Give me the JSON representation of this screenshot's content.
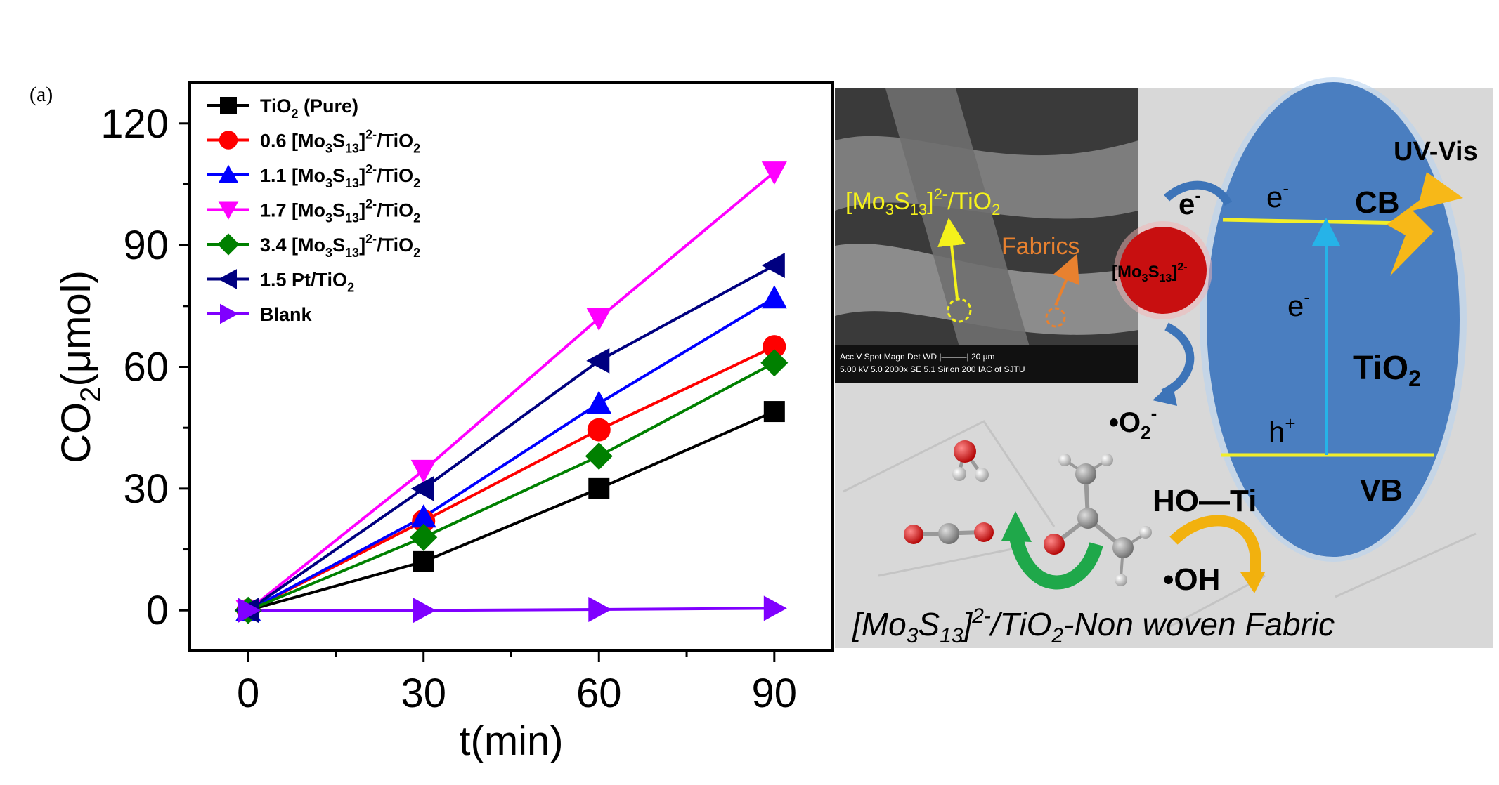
{
  "panel_label": "(a)",
  "colors": {
    "ellipse": "#4a7ec0",
    "band_line": "#f2ee2a",
    "vertical_arrow": "#26b3e8",
    "cluster": "#c80f10",
    "lightning": "#f7b818",
    "cycle_arrow_green": "#1fa84a",
    "oh_arrow": "#f2b10e",
    "photo_bg": "#d9d9d9",
    "sem_bg": "#3c3c3c",
    "annotation_yellow": "#f5f21b",
    "annotation_orange": "#e8812f"
  },
  "chart_data": {
    "type": "line",
    "x": [
      0,
      30,
      60,
      90
    ],
    "xlabel": "t(min)",
    "ylabel": "CO2(μmol)",
    "xlim": [
      -10,
      100
    ],
    "ylim": [
      -10,
      130
    ],
    "xticks": [
      0,
      30,
      60,
      90
    ],
    "yticks": [
      0,
      30,
      60,
      90,
      120
    ],
    "grid": false,
    "legend_placement": "top-left",
    "series": [
      {
        "name": "TiO2 (Pure)",
        "values": [
          0,
          12,
          30,
          49
        ],
        "color": "#000000",
        "marker": "square"
      },
      {
        "name": "0.6 [Mo3S13]2-/TiO2",
        "values": [
          0,
          22,
          44.5,
          65
        ],
        "color": "#ff0000",
        "marker": "circle"
      },
      {
        "name": "1.1 [Mo3S13]2-/TiO2",
        "values": [
          0,
          23,
          51,
          77
        ],
        "color": "#0000ff",
        "marker": "triangle-up"
      },
      {
        "name": "1.7 [Mo3S13]2-/TiO2",
        "values": [
          0,
          34.5,
          72,
          108
        ],
        "color": "#ff00ff",
        "marker": "triangle-down"
      },
      {
        "name": "3.4 [Mo3S13]2-/TiO2",
        "values": [
          0,
          18,
          38,
          61
        ],
        "color": "#008000",
        "marker": "diamond"
      },
      {
        "name": "1.5 Pt/TiO2",
        "values": [
          0,
          30,
          61.5,
          85
        ],
        "color": "#000080",
        "marker": "triangle-left"
      },
      {
        "name": "Blank",
        "values": [
          0,
          0,
          0.2,
          0.5
        ],
        "color": "#8000ff",
        "marker": "triangle-right"
      }
    ]
  },
  "diagram": {
    "uv_vis": "UV-Vis",
    "cb": "CB",
    "vb": "VB",
    "e_cb": "e",
    "e_mid": "e",
    "e_left": "e",
    "e_sup": "-",
    "h_plus": "h",
    "h_sup": "+",
    "tio2_main": "TiO",
    "tio2_sub": "2",
    "cluster_main": "[Mo",
    "cluster_sub1": "3",
    "cluster_mid": "S",
    "cluster_sub2": "13",
    "cluster_end": "]",
    "cluster_sup": "2-",
    "superoxide_main": "•O",
    "superoxide_sub": "2",
    "superoxide_sup": "-",
    "hoti": "HO—Ti",
    "oh": "•OH",
    "sem_label_main": "[Mo",
    "sem_label_sub1": "3",
    "sem_label_mid": "S",
    "sem_label_sub2": "13",
    "sem_label_end": "]",
    "sem_label_sup": "2-",
    "sem_label_tail": "/TiO",
    "sem_label_tail_sub": "2",
    "fabrics": "Fabrics",
    "sem_meta_row1": "Acc.V  Spot Magn   Det  WD  |———|  20 μm",
    "sem_meta_row2": "5.00 kV 5.0   2000x   SE   5.1   Sirion 200 IAC of SJTU",
    "caption_main": "[Mo",
    "caption_sub1": "3",
    "caption_mid": "S",
    "caption_sub2": "13",
    "caption_end": "]",
    "caption_sup": "2-",
    "caption_tail": "/TiO",
    "caption_tail_sub": "2",
    "caption_rest": "-Non woven Fabric"
  }
}
